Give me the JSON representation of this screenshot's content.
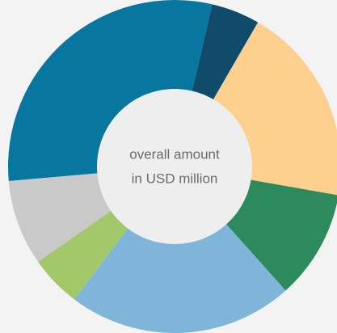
{
  "chart_data": {
    "type": "donut",
    "center_text": [
      "overall amount",
      "in USD million"
    ],
    "categories": [
      null,
      null,
      null,
      null,
      null,
      null,
      null
    ],
    "values": [
      30,
      4.7,
      19.4,
      10.6,
      21.9,
      5,
      8.3
    ],
    "colors": [
      "#07779f",
      "#104b6b",
      "#fdd08f",
      "#2c8a5c",
      "#80b5da",
      "#a2c86a",
      "#c9c9c9"
    ]
  }
}
